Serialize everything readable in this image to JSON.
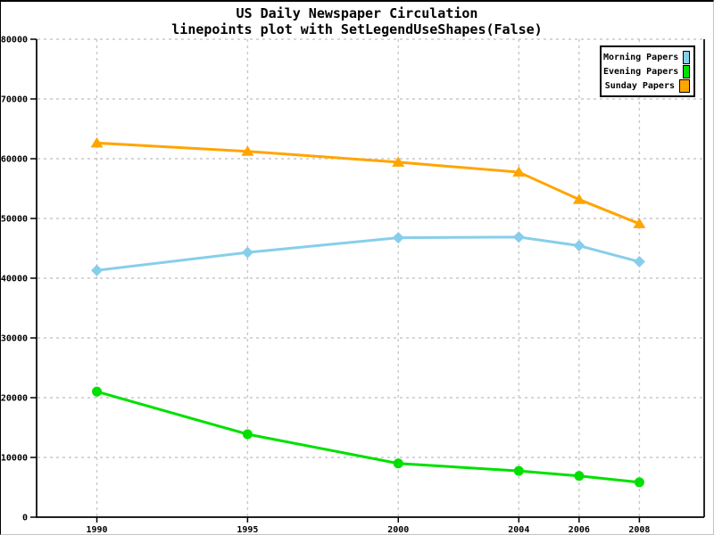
{
  "title": "US Daily Newspaper Circulation",
  "subtitle": "linepoints plot with SetLegendUseShapes(False)",
  "colors": {
    "background": "#FFFFFF",
    "text": "#000000",
    "axis": "#000000",
    "grid": "#C8C8C8",
    "morning": "#87CEEB",
    "evening": "#00E000",
    "sunday": "#FFA500"
  },
  "chart_data": {
    "type": "line",
    "subtype": "linepoints",
    "title": "US Daily Newspaper Circulation",
    "subtitle": "linepoints plot with SetLegendUseShapes(False)",
    "xlabel": "",
    "ylabel": "",
    "x": [
      1990,
      1995,
      2000,
      2004,
      2006,
      2008
    ],
    "x_tick_labels": [
      "1990",
      "1995",
      "2000",
      "2004",
      "2006",
      "2008"
    ],
    "ylim": [
      0,
      80000
    ],
    "y_ticks": [
      0,
      10000,
      20000,
      30000,
      40000,
      50000,
      60000,
      70000,
      80000
    ],
    "y_tick_labels": [
      "0",
      "10000",
      "20000",
      "30000",
      "40000",
      "50000",
      "60000",
      "70000",
      "80000"
    ],
    "grid": true,
    "grid_style": "dashed",
    "grid_color": "#C8C8C8",
    "legend_position": "top-right",
    "legend_use_shapes": false,
    "series": [
      {
        "name": "Morning Papers",
        "color": "#87CEEB",
        "marker": "diamond",
        "values": [
          41311,
          44310,
          46772,
          46887,
          45441,
          42757
        ]
      },
      {
        "name": "Evening Papers",
        "color": "#00E000",
        "marker": "circle",
        "values": [
          21017,
          13883,
          9000,
          7738,
          6900,
          5840
        ]
      },
      {
        "name": "Sunday Papers",
        "color": "#FFA500",
        "marker": "triangle-up",
        "values": [
          62634,
          61229,
          59421,
          57754,
          53179,
          49115
        ]
      }
    ]
  }
}
